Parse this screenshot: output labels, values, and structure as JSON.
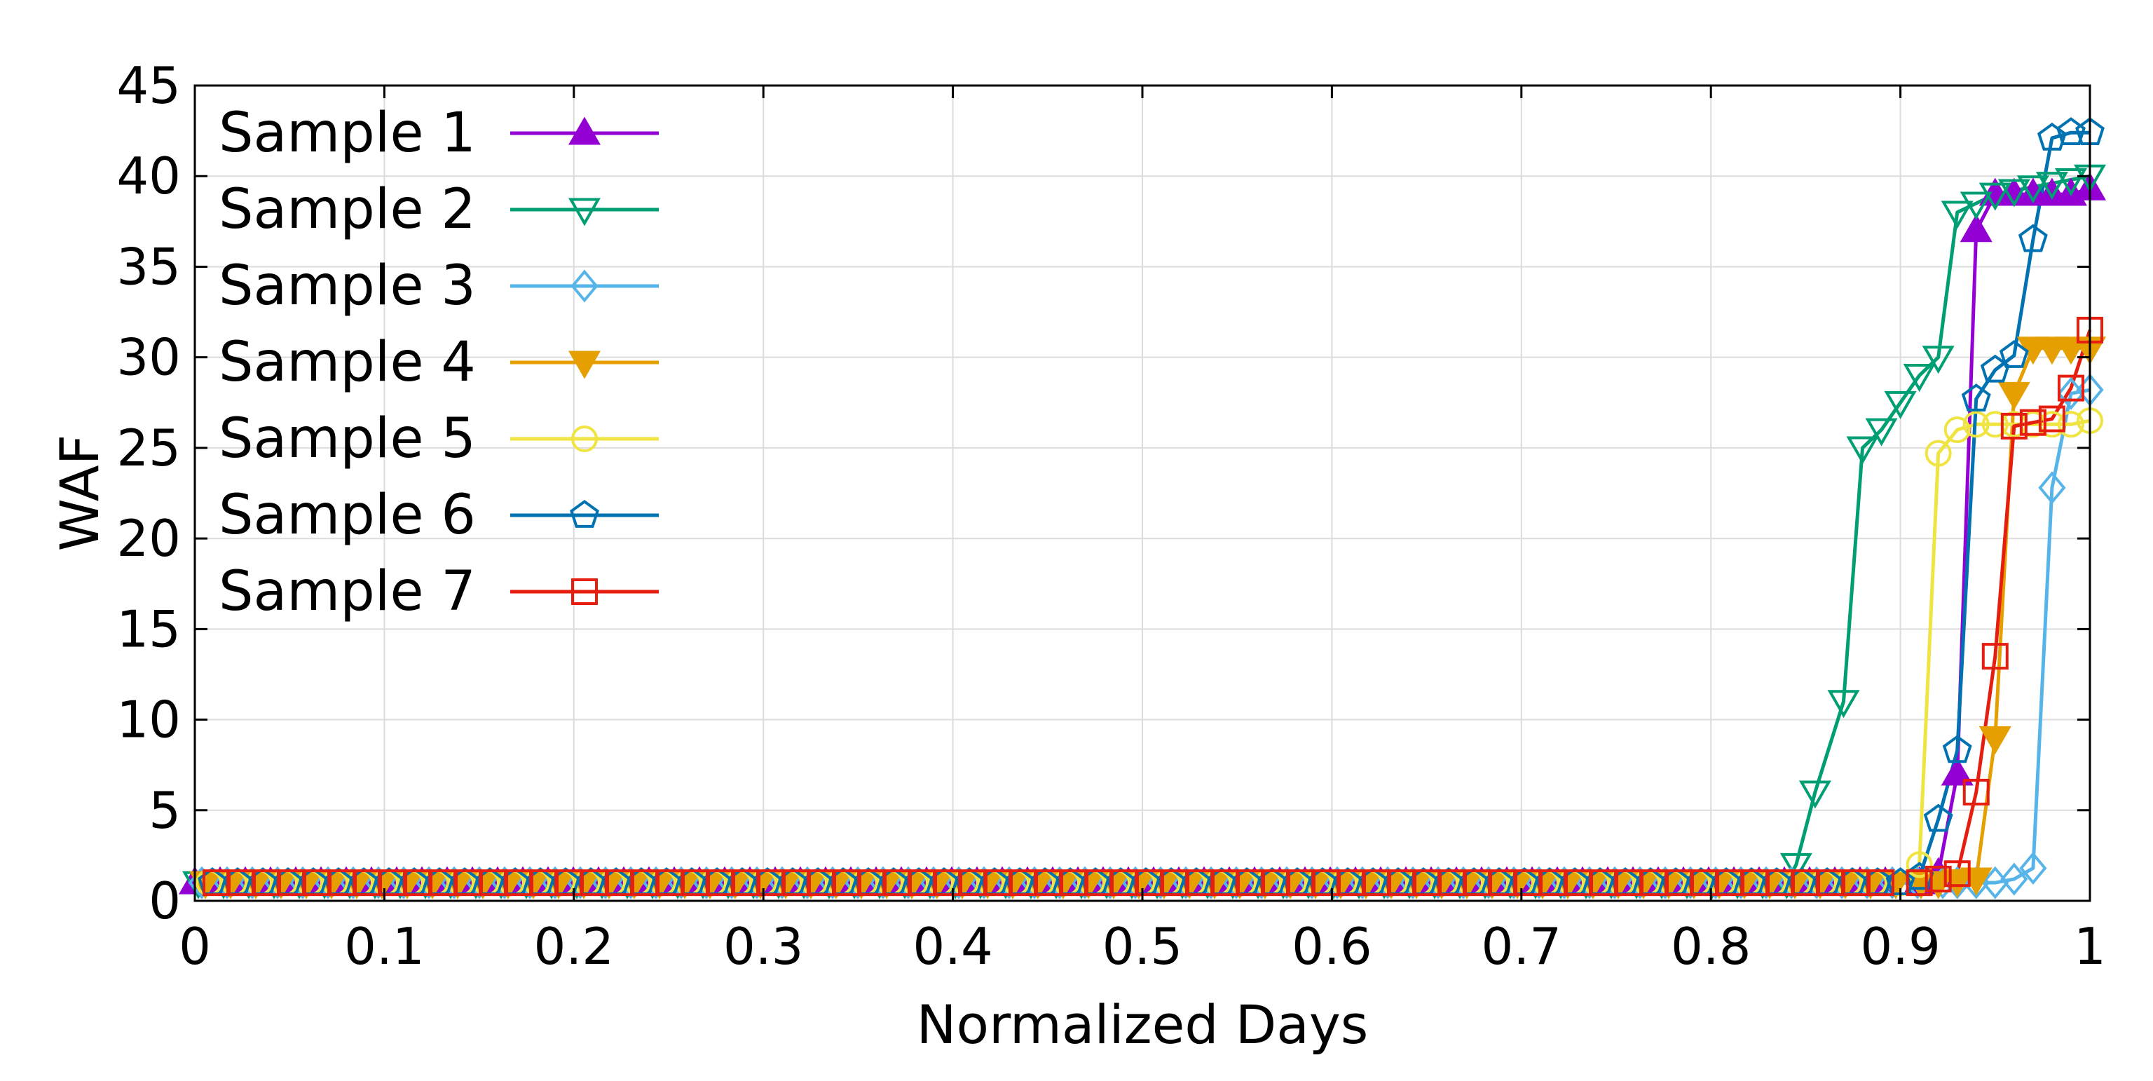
{
  "chart_data": {
    "type": "line",
    "title": "",
    "xlabel": "Normalized Days",
    "ylabel": "WAF",
    "xlim": [
      0,
      1
    ],
    "ylim": [
      0,
      45
    ],
    "xticks": [
      0,
      0.1,
      0.2,
      0.3,
      0.4,
      0.5,
      0.6,
      0.7,
      0.8,
      0.9,
      1
    ],
    "xtick_labels": [
      "0",
      "0.1",
      "0.2",
      "0.3",
      "0.4",
      "0.5",
      "0.6",
      "0.7",
      "0.8",
      "0.9",
      "1"
    ],
    "yticks": [
      0,
      5,
      10,
      15,
      20,
      25,
      30,
      35,
      40,
      45
    ],
    "ytick_labels": [
      "0",
      "5",
      "10",
      "15",
      "20",
      "25",
      "30",
      "35",
      "40",
      "45"
    ],
    "grid": true,
    "legend_position": "top-left",
    "series": [
      {
        "name": "Sample 1",
        "color": "#9400d3",
        "marker": "triangle-up-filled",
        "points": [
          [
            0.0,
            1
          ],
          [
            0.91,
            1
          ],
          [
            0.92,
            1.5
          ],
          [
            0.93,
            7
          ],
          [
            0.94,
            37
          ],
          [
            0.95,
            39
          ],
          [
            0.96,
            39
          ],
          [
            0.97,
            39
          ],
          [
            0.98,
            39
          ],
          [
            0.99,
            39
          ],
          [
            1.0,
            39.3
          ]
        ]
      },
      {
        "name": "Sample 2",
        "color": "#009e73",
        "marker": "triangle-down-open",
        "points": [
          [
            0.0,
            1
          ],
          [
            0.84,
            1
          ],
          [
            0.845,
            2
          ],
          [
            0.855,
            6
          ],
          [
            0.87,
            11
          ],
          [
            0.88,
            25
          ],
          [
            0.89,
            26
          ],
          [
            0.9,
            27.5
          ],
          [
            0.91,
            29
          ],
          [
            0.92,
            30
          ],
          [
            0.93,
            38
          ],
          [
            0.94,
            38.5
          ],
          [
            0.95,
            39
          ],
          [
            0.96,
            39.2
          ],
          [
            0.97,
            39.4
          ],
          [
            0.98,
            39.6
          ],
          [
            0.99,
            39.8
          ],
          [
            1.0,
            40
          ]
        ]
      },
      {
        "name": "Sample 3",
        "color": "#56b4e9",
        "marker": "diamond-open",
        "points": [
          [
            0.0,
            1
          ],
          [
            0.93,
            1
          ],
          [
            0.94,
            1
          ],
          [
            0.95,
            1
          ],
          [
            0.96,
            1.2
          ],
          [
            0.97,
            1.8
          ],
          [
            0.98,
            22.8
          ],
          [
            0.99,
            28
          ],
          [
            1.0,
            28.2
          ]
        ]
      },
      {
        "name": "Sample 4",
        "color": "#e69f00",
        "marker": "triangle-down-filled",
        "points": [
          [
            0.0,
            1
          ],
          [
            0.92,
            1
          ],
          [
            0.93,
            1.1
          ],
          [
            0.94,
            1.2
          ],
          [
            0.95,
            9
          ],
          [
            0.96,
            28
          ],
          [
            0.97,
            30.5
          ],
          [
            0.98,
            30.5
          ],
          [
            0.99,
            30.5
          ],
          [
            1.0,
            30.5
          ]
        ]
      },
      {
        "name": "Sample 5",
        "color": "#f0e442",
        "marker": "circle-open",
        "points": [
          [
            0.0,
            1
          ],
          [
            0.9,
            1
          ],
          [
            0.91,
            2
          ],
          [
            0.92,
            24.7
          ],
          [
            0.93,
            26
          ],
          [
            0.94,
            26.3
          ],
          [
            0.95,
            26.3
          ],
          [
            0.96,
            26.3
          ],
          [
            0.97,
            26.3
          ],
          [
            0.98,
            26.3
          ],
          [
            0.99,
            26.3
          ],
          [
            1.0,
            26.5
          ]
        ]
      },
      {
        "name": "Sample 6",
        "color": "#0072b2",
        "marker": "pentagon-open",
        "points": [
          [
            0.0,
            1
          ],
          [
            0.9,
            1
          ],
          [
            0.91,
            1.3
          ],
          [
            0.92,
            4.5
          ],
          [
            0.93,
            8.3
          ],
          [
            0.94,
            27.7
          ],
          [
            0.95,
            29.3
          ],
          [
            0.96,
            30.1
          ],
          [
            0.97,
            36.5
          ],
          [
            0.98,
            42.1
          ],
          [
            0.99,
            42.4
          ],
          [
            1.0,
            42.4
          ]
        ]
      },
      {
        "name": "Sample 7",
        "color": "#e51e10",
        "marker": "square-open",
        "points": [
          [
            0.0,
            1
          ],
          [
            0.91,
            1
          ],
          [
            0.92,
            1.2
          ],
          [
            0.93,
            1.5
          ],
          [
            0.94,
            6
          ],
          [
            0.95,
            13.5
          ],
          [
            0.96,
            26.2
          ],
          [
            0.97,
            26.4
          ],
          [
            0.98,
            26.6
          ],
          [
            0.99,
            28.3
          ],
          [
            1.0,
            31.5
          ]
        ]
      }
    ]
  }
}
